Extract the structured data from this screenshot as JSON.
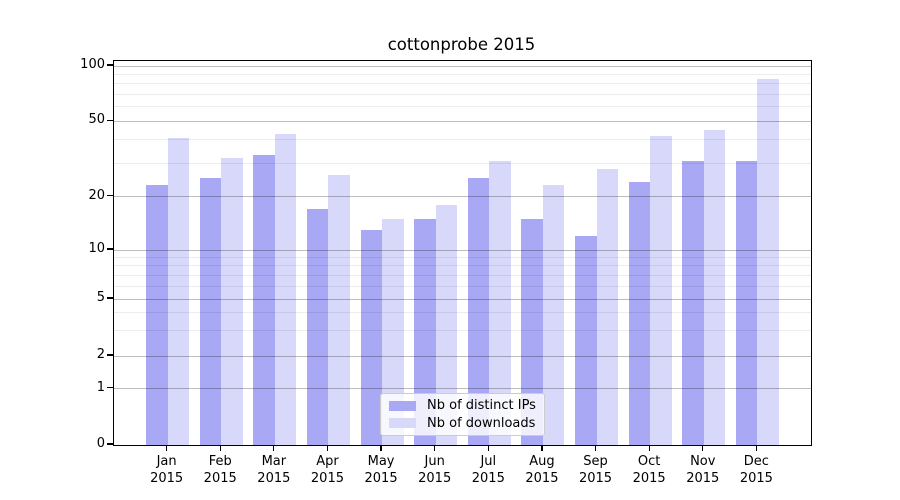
{
  "title": "cottonprobe 2015",
  "chart_data": {
    "type": "bar",
    "title": "cottonprobe 2015",
    "categories": [
      "Jan 2015",
      "Feb 2015",
      "Mar 2015",
      "Apr 2015",
      "May 2015",
      "Jun 2015",
      "Jul 2015",
      "Aug 2015",
      "Sep 2015",
      "Oct 2015",
      "Nov 2015",
      "Dec 2015"
    ],
    "x_tick_months": [
      "Jan",
      "Feb",
      "Mar",
      "Apr",
      "May",
      "Jun",
      "Jul",
      "Aug",
      "Sep",
      "Oct",
      "Nov",
      "Dec"
    ],
    "x_tick_year": "2015",
    "series": [
      {
        "name": "Nb of distinct IPs",
        "color": "#a8a8f5",
        "values": [
          23,
          25,
          33,
          17,
          13,
          15,
          25,
          15,
          12,
          24,
          31,
          31
        ]
      },
      {
        "name": "Nb of downloads",
        "color": "#d8d8fa",
        "values": [
          41,
          32,
          43,
          26,
          15,
          18,
          31,
          23,
          28,
          42,
          45,
          85
        ]
      }
    ],
    "xlabel": "",
    "ylabel": "",
    "y_axis": {
      "scale": "symlog",
      "tick_values": [
        0,
        1,
        2,
        5,
        10,
        20,
        50,
        100
      ],
      "tick_labels": [
        "0",
        "1",
        "2",
        "5",
        "10",
        "20",
        "50",
        "100"
      ],
      "minor_gridline_values": [
        3,
        4,
        6,
        7,
        8,
        9,
        30,
        40,
        60,
        70,
        80,
        90
      ],
      "range_top": 106
    },
    "grid": true,
    "legend_position": "lower center"
  },
  "colors": {
    "bar_distinct_ips": "#a8a8f5",
    "bar_downloads": "#d8d8fa",
    "grid_major": "rgba(0,0,0,0.26)",
    "grid_minor": "rgba(0,0,0,0.075)",
    "axis_spine": "#000000",
    "background": "#ffffff",
    "text": "#000000"
  }
}
